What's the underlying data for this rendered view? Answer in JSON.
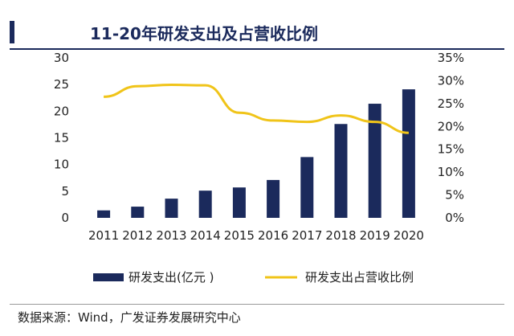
{
  "chart_data": {
    "type": "bar+line",
    "title": "11-20年研发支出及占营收比例",
    "categories": [
      "2011",
      "2012",
      "2013",
      "2014",
      "2015",
      "2016",
      "2017",
      "2018",
      "2019",
      "2020"
    ],
    "series": [
      {
        "name": "研发支出(亿元 )",
        "type": "bar",
        "axis": "left",
        "color": "#1b2a5c",
        "values": [
          1.4,
          2.1,
          3.6,
          5.1,
          5.7,
          7.1,
          11.4,
          17.6,
          21.4,
          24.1
        ]
      },
      {
        "name": "研发支出占营收比例",
        "type": "line",
        "axis": "right",
        "color": "#f0c419",
        "values": [
          26.5,
          28.8,
          29.1,
          29.0,
          23.0,
          21.3,
          21.0,
          22.4,
          21.0,
          18.6
        ]
      }
    ],
    "y_left": {
      "ylim": [
        0,
        30
      ],
      "ticks": [
        "0",
        "5",
        "10",
        "15",
        "20",
        "25",
        "30"
      ]
    },
    "y_right": {
      "ylim": [
        0,
        35
      ],
      "ticks": [
        "0%",
        "5%",
        "10%",
        "15%",
        "20%",
        "25%",
        "30%",
        "35%"
      ]
    },
    "legend_position": "bottom",
    "grid": false
  },
  "source": "数据来源：Wind，广发证券发展研究中心"
}
